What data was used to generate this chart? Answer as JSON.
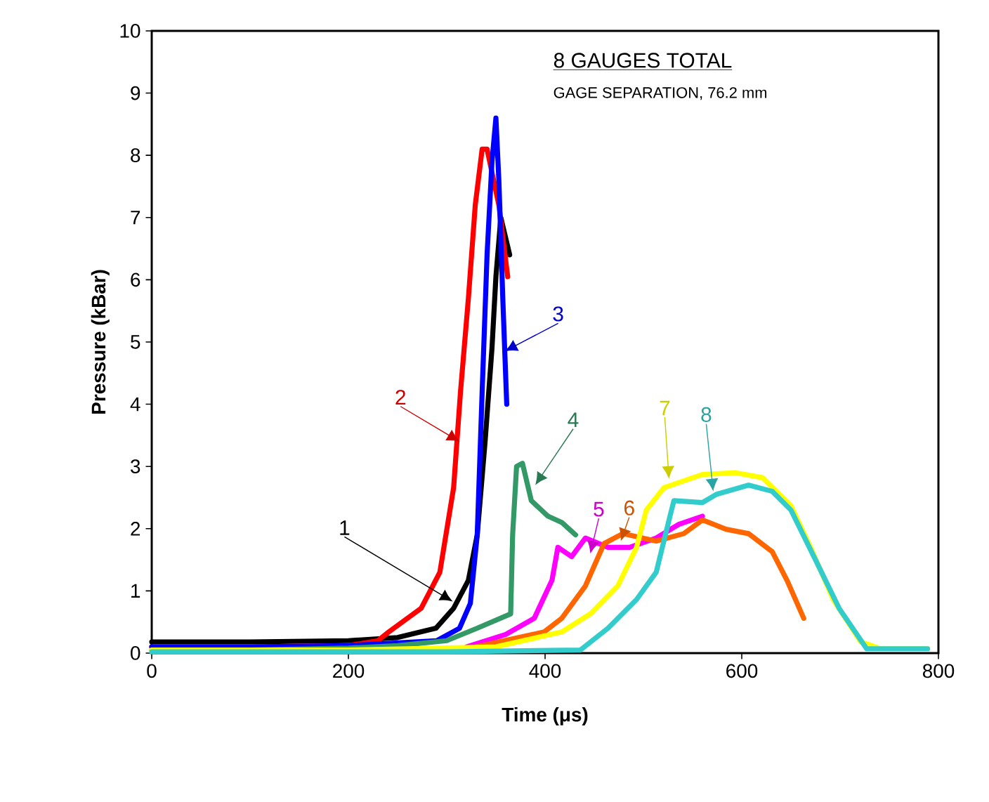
{
  "chart_data": {
    "type": "line",
    "title": "8 GAUGES TOTAL",
    "subtitle": "GAGE SEPARATION, 76.2 mm",
    "xlabel": "Time (μs)",
    "ylabel": "Pressure (kBar)",
    "xlim": [
      0,
      800
    ],
    "ylim": [
      0,
      10
    ],
    "xticks": [
      0,
      200,
      400,
      600,
      800
    ],
    "yticks": [
      0,
      1,
      2,
      3,
      4,
      5,
      6,
      7,
      8,
      9,
      10
    ],
    "grid": false,
    "marker": "none",
    "line_style": "solid",
    "series": [
      {
        "color": "#000000",
        "x": [
          0,
          100,
          200,
          250,
          289,
          307,
          322,
          331,
          339,
          346,
          350,
          355,
          364
        ],
        "values": [
          0.18,
          0.18,
          0.2,
          0.25,
          0.4,
          0.72,
          1.17,
          1.9,
          3.4,
          4.9,
          6.05,
          7.0,
          6.4
        ]
      },
      {
        "color": "#ff0000",
        "x": [
          0,
          100,
          200,
          230,
          241,
          274,
          293,
          307,
          314,
          322,
          329,
          336,
          341,
          353,
          362
        ],
        "values": [
          0.1,
          0.1,
          0.12,
          0.2,
          0.34,
          0.72,
          1.3,
          2.66,
          4.2,
          5.7,
          7.2,
          8.1,
          8.1,
          7.2,
          6.05
        ]
      },
      {
        "color": "#0000ff",
        "x": [
          0,
          100,
          200,
          290,
          313,
          324,
          331,
          336,
          341,
          346,
          350,
          353,
          357,
          361
        ],
        "values": [
          0.1,
          0.1,
          0.12,
          0.2,
          0.4,
          0.8,
          1.9,
          4.2,
          6.4,
          7.9,
          8.6,
          7.6,
          5.7,
          4.0
        ]
      },
      {
        "color": "#339966",
        "x": [
          0,
          100,
          200,
          250,
          300,
          331,
          365,
          367,
          371,
          377,
          386,
          403,
          417,
          431
        ],
        "values": [
          0.05,
          0.05,
          0.08,
          0.12,
          0.2,
          0.4,
          0.63,
          1.9,
          3.0,
          3.05,
          2.45,
          2.2,
          2.1,
          1.9
        ]
      },
      {
        "color": "#ff00ff",
        "x": [
          320,
          360,
          389,
          407,
          413,
          427,
          441,
          464,
          486,
          513,
          536,
          560
        ],
        "values": [
          0.1,
          0.3,
          0.56,
          1.17,
          1.7,
          1.55,
          1.85,
          1.7,
          1.7,
          1.85,
          2.07,
          2.2
        ]
      },
      {
        "color": "#ff6600",
        "x": [
          330,
          399,
          417,
          441,
          460,
          479,
          513,
          541,
          560,
          584,
          607,
          631,
          646,
          663
        ],
        "values": [
          0.1,
          0.34,
          0.56,
          1.08,
          1.76,
          1.92,
          1.8,
          1.92,
          2.14,
          1.99,
          1.92,
          1.63,
          1.17,
          0.56
        ]
      },
      {
        "color": "#ffff00",
        "x": [
          0,
          100,
          200,
          350,
          417,
          446,
          474,
          493,
          503,
          521,
          560,
          593,
          621,
          650,
          670,
          693,
          721,
          741,
          789
        ],
        "values": [
          0.05,
          0.05,
          0.05,
          0.1,
          0.34,
          0.63,
          1.08,
          1.7,
          2.3,
          2.66,
          2.87,
          2.9,
          2.82,
          2.37,
          1.7,
          0.86,
          0.18,
          0.07,
          0.07
        ]
      },
      {
        "color": "#33cccc",
        "x": [
          0,
          100,
          200,
          300,
          436,
          464,
          493,
          513,
          527,
          531,
          560,
          574,
          607,
          631,
          650,
          674,
          699,
          727,
          789
        ],
        "values": [
          0.02,
          0.02,
          0.02,
          0.02,
          0.05,
          0.4,
          0.86,
          1.3,
          2.2,
          2.45,
          2.42,
          2.55,
          2.7,
          2.6,
          2.3,
          1.53,
          0.72,
          0.07,
          0.07
        ]
      }
    ],
    "annotations": [
      {
        "text": "1",
        "x": 306,
        "y": 0.83
      },
      {
        "text": "2",
        "x": 313,
        "y": 3.4
      },
      {
        "text": "3",
        "x": 359,
        "y": 4.85
      },
      {
        "text": "4",
        "x": 390,
        "y": 2.7
      },
      {
        "text": "5",
        "x": 446,
        "y": 1.6
      },
      {
        "text": "6",
        "x": 477,
        "y": 1.8
      },
      {
        "text": "7",
        "x": 526,
        "y": 2.8
      },
      {
        "text": "8",
        "x": 571,
        "y": 2.6
      }
    ]
  }
}
